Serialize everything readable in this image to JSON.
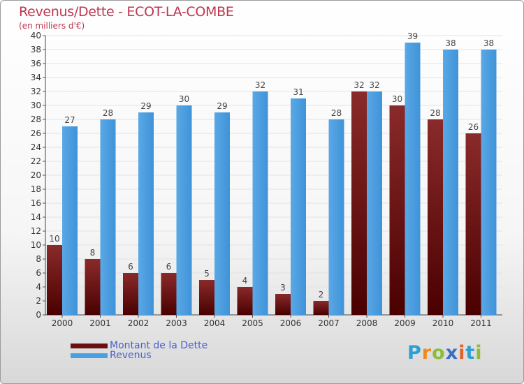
{
  "title": "Revenus/Dette - ECOT-LA-COMBE",
  "subtitle": "(en milliers d'€)",
  "chart_data": {
    "type": "bar",
    "categories": [
      "2000",
      "2001",
      "2002",
      "2003",
      "2004",
      "2005",
      "2006",
      "2007",
      "2008",
      "2009",
      "2010",
      "2011"
    ],
    "series": [
      {
        "name": "Montant de la Dette",
        "color": "#7a1a1a",
        "values": [
          10,
          8,
          6,
          6,
          5,
          4,
          3,
          2,
          32,
          30,
          28,
          26
        ]
      },
      {
        "name": "Revenus",
        "color": "#4a9fe0",
        "values": [
          27,
          28,
          29,
          30,
          29,
          32,
          31,
          28,
          32,
          39,
          38,
          38
        ]
      }
    ],
    "ylim": [
      0,
      40
    ],
    "yticks": [
      0,
      2,
      4,
      6,
      8,
      10,
      12,
      14,
      16,
      18,
      20,
      22,
      24,
      26,
      28,
      30,
      32,
      34,
      36,
      38,
      40
    ],
    "grid": true,
    "legend_position": "bottom-left"
  },
  "legend": [
    {
      "label": "Montant de la Dette",
      "color": "#7a1a1a"
    },
    {
      "label": "Revenus",
      "color": "#4a9fe0"
    }
  ],
  "logo": {
    "p": "P",
    "r": "r",
    "o": "o",
    "x": "x",
    "i": "i",
    "t": "t",
    "i2": "i"
  }
}
